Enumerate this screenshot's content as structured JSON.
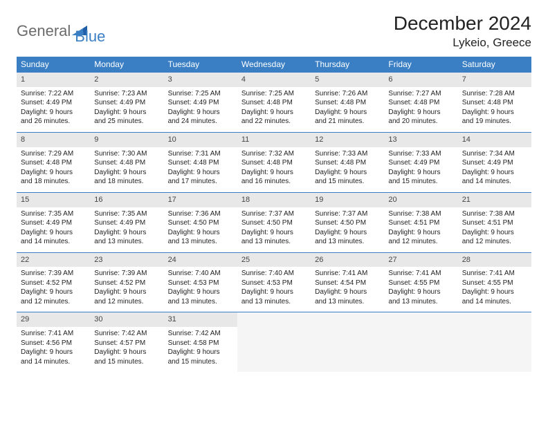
{
  "logo": {
    "text1": "General",
    "text2": "Blue"
  },
  "title": "December 2024",
  "location": "Lykeio, Greece",
  "colors": {
    "header_bg": "#3a7fc4",
    "header_text": "#ffffff",
    "daynum_bg": "#e8e8e8",
    "border": "#3a7fc4",
    "logo_gray": "#6b6b6b",
    "logo_blue": "#3a7fc4"
  },
  "weekdays": [
    "Sunday",
    "Monday",
    "Tuesday",
    "Wednesday",
    "Thursday",
    "Friday",
    "Saturday"
  ],
  "weeks": [
    [
      {
        "n": "1",
        "sr": "Sunrise: 7:22 AM",
        "ss": "Sunset: 4:49 PM",
        "d1": "Daylight: 9 hours",
        "d2": "and 26 minutes."
      },
      {
        "n": "2",
        "sr": "Sunrise: 7:23 AM",
        "ss": "Sunset: 4:49 PM",
        "d1": "Daylight: 9 hours",
        "d2": "and 25 minutes."
      },
      {
        "n": "3",
        "sr": "Sunrise: 7:25 AM",
        "ss": "Sunset: 4:49 PM",
        "d1": "Daylight: 9 hours",
        "d2": "and 24 minutes."
      },
      {
        "n": "4",
        "sr": "Sunrise: 7:25 AM",
        "ss": "Sunset: 4:48 PM",
        "d1": "Daylight: 9 hours",
        "d2": "and 22 minutes."
      },
      {
        "n": "5",
        "sr": "Sunrise: 7:26 AM",
        "ss": "Sunset: 4:48 PM",
        "d1": "Daylight: 9 hours",
        "d2": "and 21 minutes."
      },
      {
        "n": "6",
        "sr": "Sunrise: 7:27 AM",
        "ss": "Sunset: 4:48 PM",
        "d1": "Daylight: 9 hours",
        "d2": "and 20 minutes."
      },
      {
        "n": "7",
        "sr": "Sunrise: 7:28 AM",
        "ss": "Sunset: 4:48 PM",
        "d1": "Daylight: 9 hours",
        "d2": "and 19 minutes."
      }
    ],
    [
      {
        "n": "8",
        "sr": "Sunrise: 7:29 AM",
        "ss": "Sunset: 4:48 PM",
        "d1": "Daylight: 9 hours",
        "d2": "and 18 minutes."
      },
      {
        "n": "9",
        "sr": "Sunrise: 7:30 AM",
        "ss": "Sunset: 4:48 PM",
        "d1": "Daylight: 9 hours",
        "d2": "and 18 minutes."
      },
      {
        "n": "10",
        "sr": "Sunrise: 7:31 AM",
        "ss": "Sunset: 4:48 PM",
        "d1": "Daylight: 9 hours",
        "d2": "and 17 minutes."
      },
      {
        "n": "11",
        "sr": "Sunrise: 7:32 AM",
        "ss": "Sunset: 4:48 PM",
        "d1": "Daylight: 9 hours",
        "d2": "and 16 minutes."
      },
      {
        "n": "12",
        "sr": "Sunrise: 7:33 AM",
        "ss": "Sunset: 4:48 PM",
        "d1": "Daylight: 9 hours",
        "d2": "and 15 minutes."
      },
      {
        "n": "13",
        "sr": "Sunrise: 7:33 AM",
        "ss": "Sunset: 4:49 PM",
        "d1": "Daylight: 9 hours",
        "d2": "and 15 minutes."
      },
      {
        "n": "14",
        "sr": "Sunrise: 7:34 AM",
        "ss": "Sunset: 4:49 PM",
        "d1": "Daylight: 9 hours",
        "d2": "and 14 minutes."
      }
    ],
    [
      {
        "n": "15",
        "sr": "Sunrise: 7:35 AM",
        "ss": "Sunset: 4:49 PM",
        "d1": "Daylight: 9 hours",
        "d2": "and 14 minutes."
      },
      {
        "n": "16",
        "sr": "Sunrise: 7:35 AM",
        "ss": "Sunset: 4:49 PM",
        "d1": "Daylight: 9 hours",
        "d2": "and 13 minutes."
      },
      {
        "n": "17",
        "sr": "Sunrise: 7:36 AM",
        "ss": "Sunset: 4:50 PM",
        "d1": "Daylight: 9 hours",
        "d2": "and 13 minutes."
      },
      {
        "n": "18",
        "sr": "Sunrise: 7:37 AM",
        "ss": "Sunset: 4:50 PM",
        "d1": "Daylight: 9 hours",
        "d2": "and 13 minutes."
      },
      {
        "n": "19",
        "sr": "Sunrise: 7:37 AM",
        "ss": "Sunset: 4:50 PM",
        "d1": "Daylight: 9 hours",
        "d2": "and 13 minutes."
      },
      {
        "n": "20",
        "sr": "Sunrise: 7:38 AM",
        "ss": "Sunset: 4:51 PM",
        "d1": "Daylight: 9 hours",
        "d2": "and 12 minutes."
      },
      {
        "n": "21",
        "sr": "Sunrise: 7:38 AM",
        "ss": "Sunset: 4:51 PM",
        "d1": "Daylight: 9 hours",
        "d2": "and 12 minutes."
      }
    ],
    [
      {
        "n": "22",
        "sr": "Sunrise: 7:39 AM",
        "ss": "Sunset: 4:52 PM",
        "d1": "Daylight: 9 hours",
        "d2": "and 12 minutes."
      },
      {
        "n": "23",
        "sr": "Sunrise: 7:39 AM",
        "ss": "Sunset: 4:52 PM",
        "d1": "Daylight: 9 hours",
        "d2": "and 12 minutes."
      },
      {
        "n": "24",
        "sr": "Sunrise: 7:40 AM",
        "ss": "Sunset: 4:53 PM",
        "d1": "Daylight: 9 hours",
        "d2": "and 13 minutes."
      },
      {
        "n": "25",
        "sr": "Sunrise: 7:40 AM",
        "ss": "Sunset: 4:53 PM",
        "d1": "Daylight: 9 hours",
        "d2": "and 13 minutes."
      },
      {
        "n": "26",
        "sr": "Sunrise: 7:41 AM",
        "ss": "Sunset: 4:54 PM",
        "d1": "Daylight: 9 hours",
        "d2": "and 13 minutes."
      },
      {
        "n": "27",
        "sr": "Sunrise: 7:41 AM",
        "ss": "Sunset: 4:55 PM",
        "d1": "Daylight: 9 hours",
        "d2": "and 13 minutes."
      },
      {
        "n": "28",
        "sr": "Sunrise: 7:41 AM",
        "ss": "Sunset: 4:55 PM",
        "d1": "Daylight: 9 hours",
        "d2": "and 14 minutes."
      }
    ],
    [
      {
        "n": "29",
        "sr": "Sunrise: 7:41 AM",
        "ss": "Sunset: 4:56 PM",
        "d1": "Daylight: 9 hours",
        "d2": "and 14 minutes."
      },
      {
        "n": "30",
        "sr": "Sunrise: 7:42 AM",
        "ss": "Sunset: 4:57 PM",
        "d1": "Daylight: 9 hours",
        "d2": "and 15 minutes."
      },
      {
        "n": "31",
        "sr": "Sunrise: 7:42 AM",
        "ss": "Sunset: 4:58 PM",
        "d1": "Daylight: 9 hours",
        "d2": "and 15 minutes."
      },
      null,
      null,
      null,
      null
    ]
  ]
}
